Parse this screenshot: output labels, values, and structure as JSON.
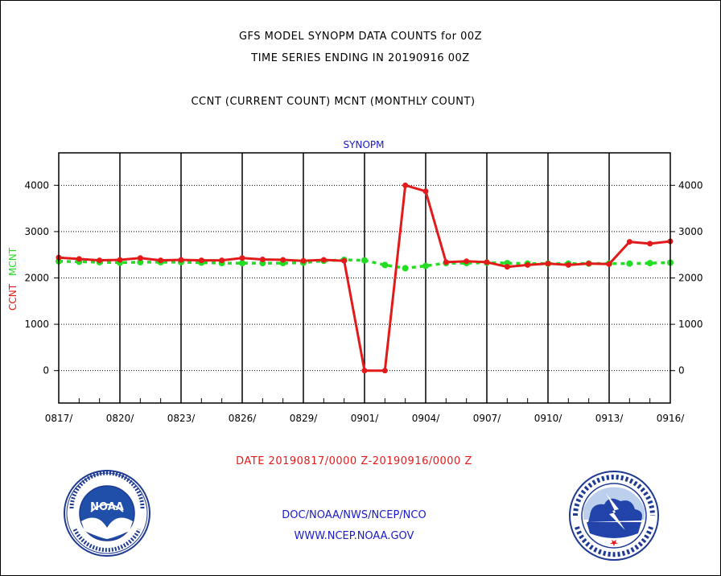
{
  "header": {
    "line1": "GFS MODEL SYNOPM DATA COUNTS for 00Z",
    "line2": "TIME SERIES ENDING IN 20190916 00Z",
    "line3": "CCNT (CURRENT COUNT) MCNT (MONTHLY COUNT)"
  },
  "footer": {
    "date_range": "DATE 20190817/0000 Z-20190916/0000 Z",
    "org": "DOC/NOAA/NWS/NCEP/NCO",
    "url": "WWW.NCEP.NOAA.GOV",
    "noaa_logo_text": "NOAA",
    "nws_logo_text": "NATIONAL WEATHER SERVICE"
  },
  "colors": {
    "ccnt": "#e31a1a",
    "mcnt": "#22dd22",
    "title": "#1a1ac8",
    "grid": "#000000"
  },
  "chart_data": {
    "type": "line",
    "title": "SYNOPM",
    "ylabel_left_parts": [
      "CCNT",
      "MCNT"
    ],
    "ylim": [
      -700,
      4700
    ],
    "yticks": [
      0,
      1000,
      2000,
      3000,
      4000
    ],
    "xticks": [
      "0817/",
      "0820/",
      "0823/",
      "0826/",
      "0829/",
      "0901/",
      "0904/",
      "0907/",
      "0910/",
      "0913/",
      "0916/"
    ],
    "x_days": [
      "0817",
      "0818",
      "0819",
      "0820",
      "0821",
      "0822",
      "0823",
      "0824",
      "0825",
      "0826",
      "0827",
      "0828",
      "0829",
      "0830",
      "0831",
      "0901",
      "0902",
      "0903",
      "0904",
      "0905",
      "0906",
      "0907",
      "0908",
      "0909",
      "0910",
      "0911",
      "0912",
      "0913",
      "0914",
      "0915",
      "0916"
    ],
    "series": [
      {
        "name": "CCNT",
        "values": [
          2440,
          2410,
          2380,
          2390,
          2430,
          2380,
          2390,
          2380,
          2380,
          2430,
          2400,
          2390,
          2370,
          2390,
          2370,
          0,
          0,
          4000,
          3870,
          2340,
          2360,
          2340,
          2240,
          2280,
          2310,
          2280,
          2310,
          2300,
          2780,
          2740,
          2790
        ]
      },
      {
        "name": "MCNT",
        "values": [
          2360,
          2350,
          2340,
          2330,
          2340,
          2340,
          2340,
          2330,
          2320,
          2320,
          2320,
          2320,
          2330,
          2370,
          2390,
          2380,
          2280,
          2210,
          2260,
          2320,
          2320,
          2330,
          2320,
          2310,
          2310,
          2310,
          2310,
          2310,
          2310,
          2320,
          2330
        ]
      }
    ]
  }
}
